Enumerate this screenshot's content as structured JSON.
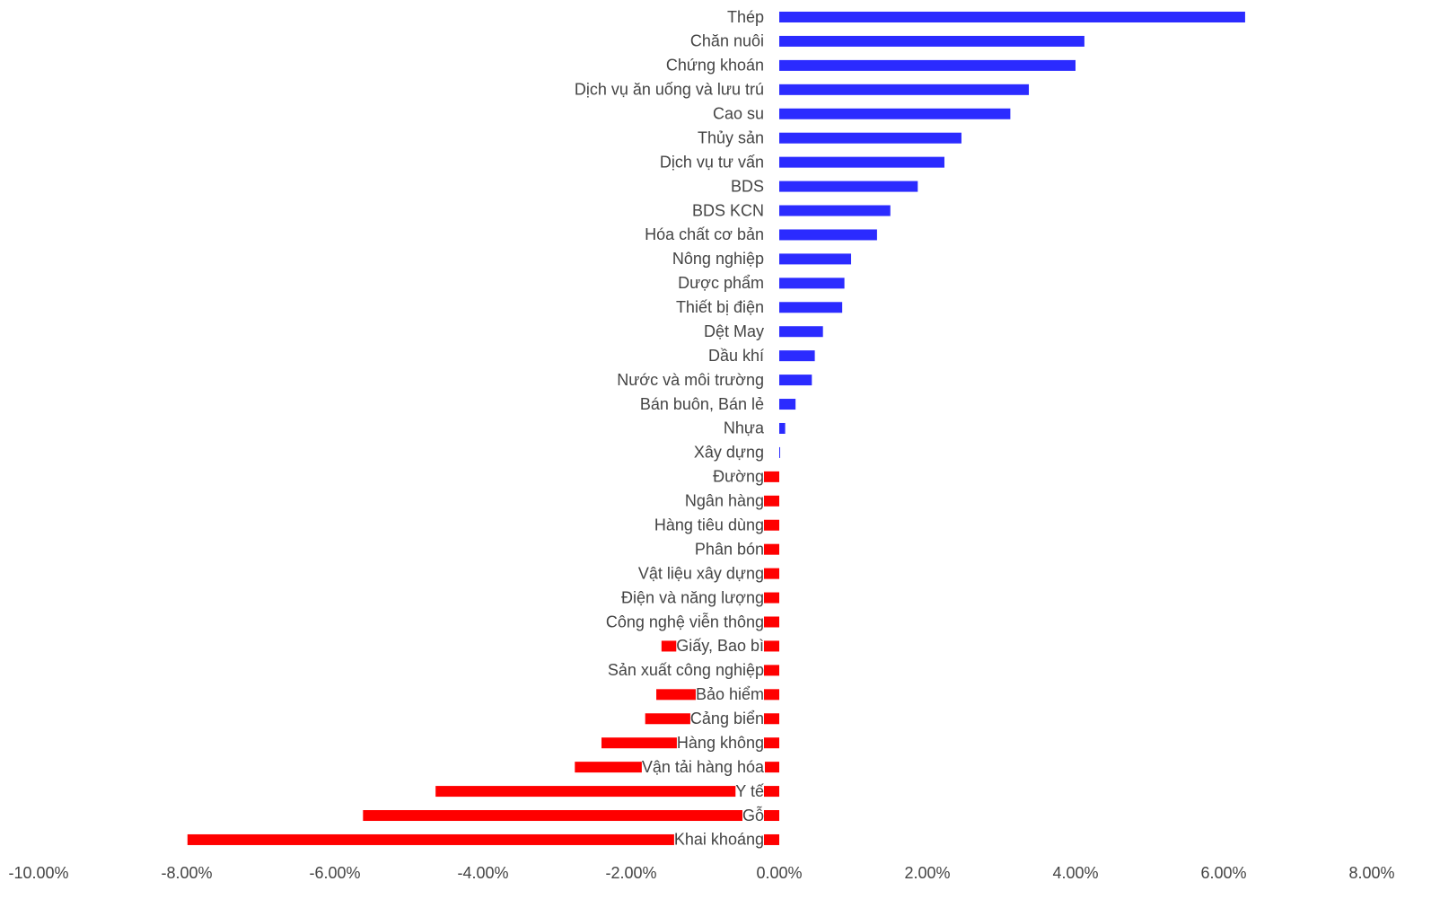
{
  "chart_data": {
    "type": "barh",
    "categories": [
      "Thép",
      "Chăn nuôi",
      "Chứng khoán",
      "Dịch vụ ăn uống và lưu trú",
      "Cao su",
      "Thủy sản",
      "Dịch vụ tư vấn",
      "BDS",
      "BDS KCN",
      "Hóa chất cơ bản",
      "Nông nghiệp",
      "Dược phẩm",
      "Thiết bị điện",
      "Dệt May",
      "Dầu khí",
      "Nước và môi trường",
      "Bán buôn, Bán lẻ",
      "Nhựa",
      "Xây dựng",
      "Đường",
      "Ngân hàng",
      "Hàng tiêu dùng",
      "Phân bón",
      "Vật liệu xây dựng",
      "Điện và năng lượng",
      "Công nghệ viễn thông",
      "Giấy, Bao bì",
      "Sản xuất công nghiệp",
      "Bảo hiểm",
      "Cảng biển",
      "Hàng không",
      "Vận tải hàng hóa",
      "Y tế",
      "Gỗ",
      "Khai khoáng"
    ],
    "values": [
      6.29,
      4.12,
      4.0,
      3.37,
      3.12,
      2.46,
      2.23,
      1.87,
      1.5,
      1.32,
      0.97,
      0.88,
      0.85,
      0.59,
      0.48,
      0.44,
      0.22,
      0.08,
      0.01,
      -0.21,
      -0.3,
      -0.4,
      -0.5,
      -0.6,
      -0.7,
      -0.9,
      -1.59,
      -1.0,
      -1.66,
      -1.81,
      -2.4,
      -2.76,
      -4.64,
      -5.62,
      -7.99
    ],
    "positive_color": "#2b2bff",
    "negative_color": "#ff0000",
    "xlim": [
      -10,
      8
    ],
    "xticks": [
      {
        "value": -10,
        "label": "-10.00%"
      },
      {
        "value": -8,
        "label": "-8.00%"
      },
      {
        "value": -6,
        "label": "-6.00%"
      },
      {
        "value": -4,
        "label": "-4.00%"
      },
      {
        "value": -2,
        "label": "-2.00%"
      },
      {
        "value": 0,
        "label": "0.00%"
      },
      {
        "value": 2,
        "label": "2.00%"
      },
      {
        "value": 4,
        "label": "4.00%"
      },
      {
        "value": 6,
        "label": "6.00%"
      },
      {
        "value": 8,
        "label": "8.00%"
      }
    ],
    "grid": false
  }
}
